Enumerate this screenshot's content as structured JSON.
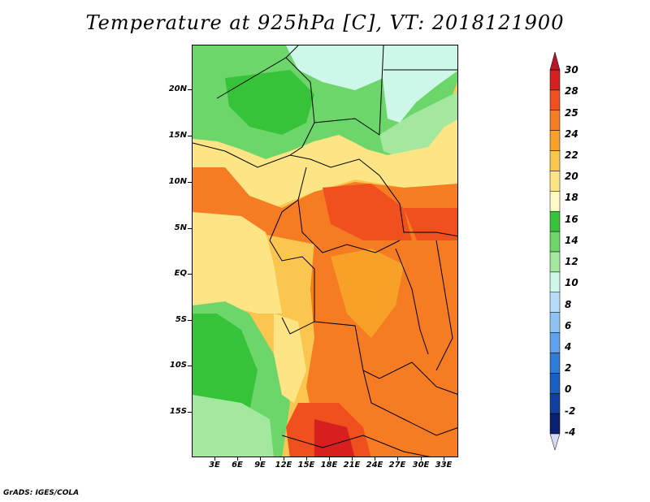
{
  "title": "Temperature at 925hPa [C], VT: 2018121900",
  "credit": "GrADS: IGES/COLA",
  "map": {
    "projection": "lat-lon",
    "lat_range": [
      -19,
      25
    ],
    "lon_range": [
      0,
      36
    ],
    "lat_ticks": [
      "20N",
      "15N",
      "10N",
      "5N",
      "EQ",
      "5S",
      "10S",
      "15S"
    ],
    "lon_ticks": [
      "3E",
      "6E",
      "9E",
      "12E",
      "15E",
      "18E",
      "21E",
      "24E",
      "27E",
      "30E",
      "33E"
    ]
  },
  "colorbar": {
    "labels": [
      "30",
      "28",
      "25",
      "24",
      "22",
      "20",
      "18",
      "16",
      "14",
      "12",
      "10",
      "8",
      "6",
      "4",
      "2",
      "0",
      "-2",
      "-4"
    ],
    "colors": [
      "#d81f1f",
      "#f0501e",
      "#f57c22",
      "#f8a128",
      "#fac650",
      "#fde485",
      "#fdfac5",
      "#36c33a",
      "#6dd66b",
      "#a3e89e",
      "#cdf7e9",
      "#b6dcfa",
      "#8ec4f5",
      "#5ca2ee",
      "#2e7cd9",
      "#1a5ec1",
      "#0f3fa0",
      "#0a2171"
    ]
  }
}
